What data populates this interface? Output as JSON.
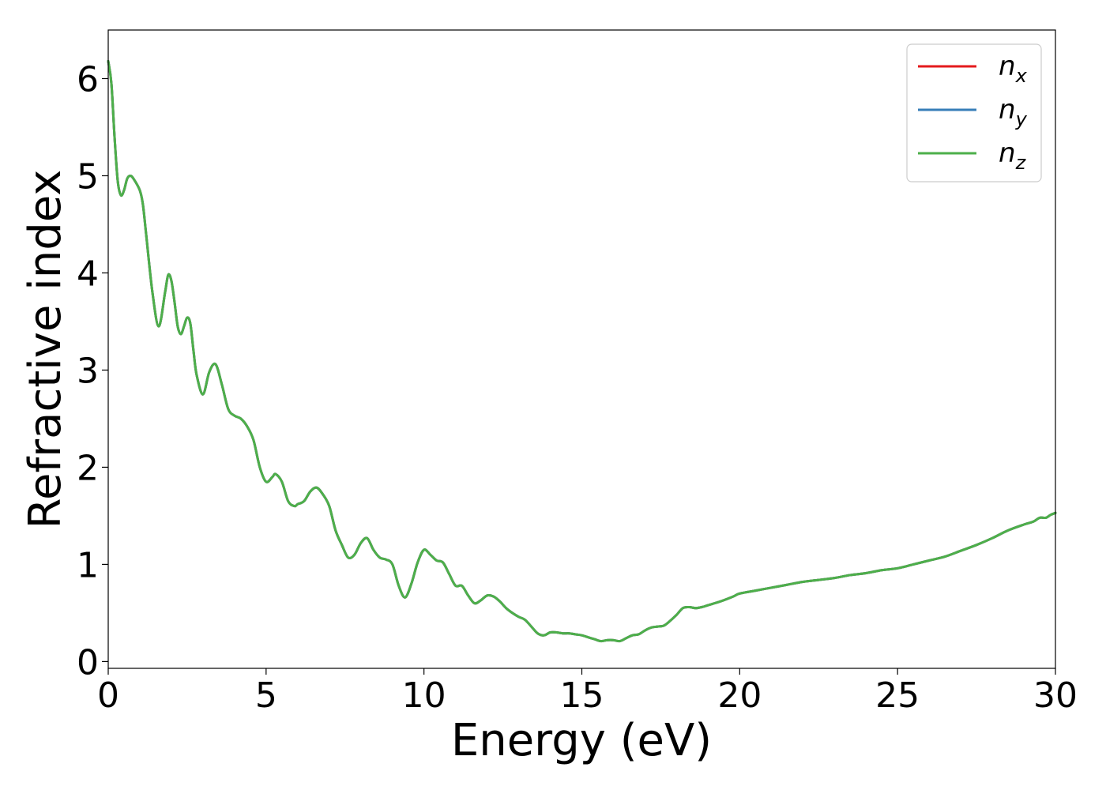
{
  "chart_data": {
    "type": "line",
    "title": "",
    "xlabel": "Energy (eV)",
    "ylabel": "Refractive index",
    "xlim": [
      0,
      30
    ],
    "ylim": [
      -0.07,
      6.5
    ],
    "xticks": [
      0,
      5,
      10,
      15,
      20,
      25,
      30
    ],
    "xtick_labels": [
      "0",
      "5",
      "10",
      "15",
      "20",
      "25",
      "30"
    ],
    "yticks": [
      0,
      1,
      2,
      3,
      4,
      5,
      6
    ],
    "ytick_labels": [
      "0",
      "1",
      "2",
      "3",
      "4",
      "5",
      "6"
    ],
    "grid": false,
    "legend_position": "top-right",
    "colors": {
      "nx": "#e41a1c",
      "ny": "#377eb8",
      "nz": "#4daf4a"
    },
    "legend": [
      {
        "key": "nx",
        "base": "n",
        "sub": "x"
      },
      {
        "key": "ny",
        "base": "n",
        "sub": "y"
      },
      {
        "key": "nz",
        "base": "n",
        "sub": "z"
      }
    ],
    "x": [
      0,
      0.1,
      0.2,
      0.3,
      0.4,
      0.5,
      0.6,
      0.7,
      0.8,
      1.0,
      1.1,
      1.2,
      1.4,
      1.6,
      1.8,
      1.9,
      2.0,
      2.1,
      2.2,
      2.3,
      2.4,
      2.5,
      2.6,
      2.7,
      2.8,
      3.0,
      3.2,
      3.4,
      3.6,
      3.8,
      4.0,
      4.2,
      4.4,
      4.6,
      4.8,
      5.0,
      5.2,
      5.3,
      5.5,
      5.7,
      5.9,
      6.0,
      6.2,
      6.4,
      6.6,
      6.8,
      7.0,
      7.2,
      7.4,
      7.6,
      7.8,
      8.0,
      8.2,
      8.4,
      8.6,
      8.8,
      9.0,
      9.2,
      9.4,
      9.6,
      9.8,
      10.0,
      10.2,
      10.4,
      10.6,
      10.8,
      11.0,
      11.2,
      11.4,
      11.6,
      11.8,
      12.0,
      12.2,
      12.4,
      12.6,
      12.8,
      13.0,
      13.2,
      13.4,
      13.6,
      13.8,
      14.0,
      14.2,
      14.4,
      14.6,
      14.8,
      15.0,
      15.2,
      15.4,
      15.6,
      15.8,
      16.0,
      16.2,
      16.4,
      16.6,
      16.8,
      17.0,
      17.2,
      17.4,
      17.6,
      17.8,
      18.0,
      18.2,
      18.4,
      18.6,
      18.8,
      19.0,
      19.4,
      19.8,
      20.0,
      20.5,
      21.0,
      21.5,
      22.0,
      22.5,
      23.0,
      23.5,
      24.0,
      24.5,
      25.0,
      25.5,
      26.0,
      26.5,
      27.0,
      27.5,
      28.0,
      28.5,
      29.0,
      29.3,
      29.5,
      29.7,
      29.85,
      30.0
    ],
    "series": [
      {
        "name": "nx",
        "y": [
          6.18,
          5.95,
          5.4,
          4.95,
          4.8,
          4.85,
          4.97,
          5.0,
          4.97,
          4.85,
          4.7,
          4.4,
          3.8,
          3.45,
          3.8,
          3.98,
          3.92,
          3.7,
          3.45,
          3.37,
          3.45,
          3.54,
          3.48,
          3.2,
          2.95,
          2.75,
          2.98,
          3.06,
          2.85,
          2.6,
          2.53,
          2.5,
          2.42,
          2.28,
          2.0,
          1.85,
          1.9,
          1.93,
          1.85,
          1.65,
          1.6,
          1.62,
          1.65,
          1.75,
          1.79,
          1.72,
          1.6,
          1.35,
          1.2,
          1.07,
          1.1,
          1.22,
          1.27,
          1.15,
          1.07,
          1.05,
          1.0,
          0.78,
          0.66,
          0.8,
          1.02,
          1.15,
          1.1,
          1.04,
          1.02,
          0.9,
          0.78,
          0.78,
          0.68,
          0.6,
          0.63,
          0.68,
          0.67,
          0.62,
          0.55,
          0.5,
          0.46,
          0.43,
          0.36,
          0.29,
          0.27,
          0.3,
          0.3,
          0.29,
          0.29,
          0.28,
          0.27,
          0.25,
          0.23,
          0.21,
          0.22,
          0.22,
          0.21,
          0.24,
          0.27,
          0.28,
          0.32,
          0.35,
          0.36,
          0.37,
          0.42,
          0.48,
          0.55,
          0.56,
          0.55,
          0.56,
          0.58,
          0.62,
          0.67,
          0.7,
          0.73,
          0.76,
          0.79,
          0.82,
          0.84,
          0.86,
          0.89,
          0.91,
          0.94,
          0.96,
          1.0,
          1.04,
          1.08,
          1.14,
          1.2,
          1.27,
          1.35,
          1.41,
          1.44,
          1.48,
          1.48,
          1.51,
          1.53
        ]
      },
      {
        "name": "ny",
        "y": [
          6.18,
          5.95,
          5.4,
          4.95,
          4.8,
          4.85,
          4.97,
          5.0,
          4.97,
          4.85,
          4.7,
          4.4,
          3.8,
          3.45,
          3.8,
          3.98,
          3.92,
          3.7,
          3.45,
          3.37,
          3.45,
          3.54,
          3.48,
          3.2,
          2.95,
          2.75,
          2.98,
          3.06,
          2.85,
          2.6,
          2.53,
          2.5,
          2.42,
          2.28,
          2.0,
          1.85,
          1.9,
          1.93,
          1.85,
          1.65,
          1.6,
          1.62,
          1.65,
          1.75,
          1.79,
          1.72,
          1.6,
          1.35,
          1.2,
          1.07,
          1.1,
          1.22,
          1.27,
          1.15,
          1.07,
          1.05,
          1.0,
          0.78,
          0.66,
          0.8,
          1.02,
          1.15,
          1.1,
          1.04,
          1.02,
          0.9,
          0.78,
          0.78,
          0.68,
          0.6,
          0.63,
          0.68,
          0.67,
          0.62,
          0.55,
          0.5,
          0.46,
          0.43,
          0.36,
          0.29,
          0.27,
          0.3,
          0.3,
          0.29,
          0.29,
          0.28,
          0.27,
          0.25,
          0.23,
          0.21,
          0.22,
          0.22,
          0.21,
          0.24,
          0.27,
          0.28,
          0.32,
          0.35,
          0.36,
          0.37,
          0.42,
          0.48,
          0.55,
          0.56,
          0.55,
          0.56,
          0.58,
          0.62,
          0.67,
          0.7,
          0.73,
          0.76,
          0.79,
          0.82,
          0.84,
          0.86,
          0.89,
          0.91,
          0.94,
          0.96,
          1.0,
          1.04,
          1.08,
          1.14,
          1.2,
          1.27,
          1.35,
          1.41,
          1.44,
          1.48,
          1.48,
          1.51,
          1.53
        ]
      },
      {
        "name": "nz",
        "y": [
          6.18,
          5.95,
          5.4,
          4.95,
          4.8,
          4.85,
          4.97,
          5.0,
          4.97,
          4.85,
          4.7,
          4.4,
          3.8,
          3.45,
          3.8,
          3.98,
          3.92,
          3.7,
          3.45,
          3.37,
          3.45,
          3.54,
          3.48,
          3.2,
          2.95,
          2.75,
          2.98,
          3.06,
          2.85,
          2.6,
          2.53,
          2.5,
          2.42,
          2.28,
          2.0,
          1.85,
          1.9,
          1.93,
          1.85,
          1.65,
          1.6,
          1.62,
          1.65,
          1.75,
          1.79,
          1.72,
          1.6,
          1.35,
          1.2,
          1.07,
          1.1,
          1.22,
          1.27,
          1.15,
          1.07,
          1.05,
          1.0,
          0.78,
          0.66,
          0.8,
          1.02,
          1.15,
          1.1,
          1.04,
          1.02,
          0.9,
          0.78,
          0.78,
          0.68,
          0.6,
          0.63,
          0.68,
          0.67,
          0.62,
          0.55,
          0.5,
          0.46,
          0.43,
          0.36,
          0.29,
          0.27,
          0.3,
          0.3,
          0.29,
          0.29,
          0.28,
          0.27,
          0.25,
          0.23,
          0.21,
          0.22,
          0.22,
          0.21,
          0.24,
          0.27,
          0.28,
          0.32,
          0.35,
          0.36,
          0.37,
          0.42,
          0.48,
          0.55,
          0.56,
          0.55,
          0.56,
          0.58,
          0.62,
          0.67,
          0.7,
          0.73,
          0.76,
          0.79,
          0.82,
          0.84,
          0.86,
          0.89,
          0.91,
          0.94,
          0.96,
          1.0,
          1.04,
          1.08,
          1.14,
          1.2,
          1.27,
          1.35,
          1.41,
          1.44,
          1.48,
          1.48,
          1.51,
          1.53
        ]
      }
    ]
  }
}
